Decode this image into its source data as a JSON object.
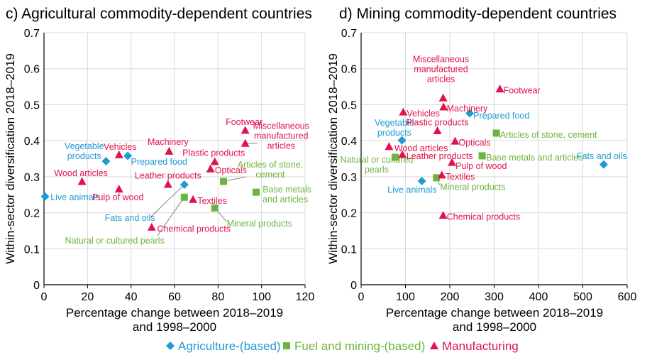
{
  "colors": {
    "agriculture": "#1f9ad6",
    "fuel": "#6db33f",
    "manufacturing": "#e0144c",
    "grid": "#d9d9d9",
    "axis": "#000000"
  },
  "legend": [
    {
      "key": "agriculture",
      "label": "Agriculture-(based)",
      "marker": "diamond"
    },
    {
      "key": "fuel",
      "label": "Fuel and mining-(based)",
      "marker": "square"
    },
    {
      "key": "manufacturing",
      "label": "Manufacturing",
      "marker": "triangle"
    }
  ],
  "chart_data": [
    {
      "type": "scatter",
      "title": "c) Agricultural commodity-dependent countries",
      "xlabel": [
        "Percentage change between 2018–2019",
        "and 1998–2000"
      ],
      "ylabel": "Within-sector diversification 2018–2019",
      "xlim": [
        0,
        120
      ],
      "ylim": [
        0,
        0.7
      ],
      "xticks": [
        "0",
        "20",
        "40",
        "60",
        "80",
        "100",
        "120"
      ],
      "yticks": [
        "0",
        "0.1",
        "0.2",
        "0.3",
        "0.4",
        "0.5",
        "0.6",
        "0.7"
      ],
      "grid": true,
      "points": [
        {
          "cat": "agriculture",
          "x": 0.5,
          "y": 0.245,
          "label": "Live animals",
          "lx": 3,
          "ly": 0.243,
          "anchor": "start",
          "leader": false
        },
        {
          "cat": "agriculture",
          "x": 28.5,
          "y": 0.343,
          "label": "Vegetable\nproducts",
          "lx": 18.5,
          "ly": 0.371,
          "anchor": "middle",
          "leader": false
        },
        {
          "cat": "agriculture",
          "x": 38.5,
          "y": 0.358,
          "label": "Prepared food",
          "lx": 40,
          "ly": 0.341,
          "anchor": "start",
          "leader": false
        },
        {
          "cat": "agriculture",
          "x": 64.5,
          "y": 0.278,
          "label": "Fats and oils",
          "lx": 39.5,
          "ly": 0.185,
          "anchor": "middle",
          "leader": true,
          "lpx": 49,
          "lpy": 0.188
        },
        {
          "cat": "fuel",
          "x": 64.5,
          "y": 0.243,
          "label": "Natural or cultured pearls",
          "lx": 32.5,
          "ly": 0.122,
          "anchor": "middle",
          "leader": true,
          "lpx": 52,
          "lpy": 0.135
        },
        {
          "cat": "fuel",
          "x": 78.5,
          "y": 0.213,
          "label": "Mineral products",
          "lx": 84,
          "ly": 0.17,
          "anchor": "start",
          "leader": true,
          "lpx": 84,
          "lpy": 0.175
        },
        {
          "cat": "fuel",
          "x": 82.5,
          "y": 0.287,
          "label": "Articles of stone,\ncement",
          "lx": 104,
          "ly": 0.319,
          "anchor": "middle",
          "leader": true,
          "lpx": 93,
          "lpy": 0.3
        },
        {
          "cat": "fuel",
          "x": 97.5,
          "y": 0.257,
          "label": "Base metals\nand articles",
          "lx": 100.5,
          "ly": 0.25,
          "anchor": "start",
          "leader": false
        },
        {
          "cat": "manufacturing",
          "x": 17.5,
          "y": 0.287,
          "label": "Wood articles",
          "lx": 17,
          "ly": 0.31,
          "anchor": "middle",
          "leader": false
        },
        {
          "cat": "manufacturing",
          "x": 34.5,
          "y": 0.361,
          "label": "Vehicles",
          "lx": 35,
          "ly": 0.383,
          "anchor": "middle",
          "leader": false
        },
        {
          "cat": "manufacturing",
          "x": 34.5,
          "y": 0.266,
          "label": "Pulp of wood",
          "lx": 34,
          "ly": 0.243,
          "anchor": "middle",
          "leader": false
        },
        {
          "cat": "manufacturing",
          "x": 49.5,
          "y": 0.16,
          "label": "Chemical products",
          "lx": 52,
          "ly": 0.155,
          "anchor": "start",
          "leader": false
        },
        {
          "cat": "manufacturing",
          "x": 57.5,
          "y": 0.371,
          "label": "Machinery",
          "lx": 57,
          "ly": 0.396,
          "anchor": "middle",
          "leader": false
        },
        {
          "cat": "manufacturing",
          "x": 57,
          "y": 0.279,
          "label": "Leather products",
          "lx": 57,
          "ly": 0.303,
          "anchor": "middle",
          "leader": false
        },
        {
          "cat": "manufacturing",
          "x": 68.5,
          "y": 0.237,
          "label": "Textiles",
          "lx": 70.5,
          "ly": 0.233,
          "anchor": "start",
          "leader": false
        },
        {
          "cat": "manufacturing",
          "x": 78.5,
          "y": 0.342,
          "label": "Plastic products",
          "lx": 78,
          "ly": 0.366,
          "anchor": "middle",
          "leader": false
        },
        {
          "cat": "manufacturing",
          "x": 76.5,
          "y": 0.322,
          "label": "Opticals",
          "lx": 78.5,
          "ly": 0.317,
          "anchor": "start",
          "leader": false
        },
        {
          "cat": "manufacturing",
          "x": 92.5,
          "y": 0.429,
          "label": "Footwear",
          "lx": 92,
          "ly": 0.452,
          "anchor": "middle",
          "leader": false
        },
        {
          "cat": "manufacturing",
          "x": 92.5,
          "y": 0.393,
          "label": "Miscellaneous\nmanufactured\narticles",
          "lx": 109,
          "ly": 0.413,
          "anchor": "middle",
          "leader": true,
          "lpx": 98,
          "lpy": 0.393
        }
      ]
    },
    {
      "type": "scatter",
      "title": "d) Mining commodity-dependent countries",
      "xlabel": [
        "Percentage change between 2018–2019",
        "and 1998–2000"
      ],
      "ylabel": "Within-sector diversification 2018–2019",
      "xlim": [
        0,
        600
      ],
      "ylim": [
        0,
        0.7
      ],
      "xticks": [
        "0",
        "100",
        "200",
        "300",
        "400",
        "500",
        "600"
      ],
      "yticks": [
        "0",
        "0.1",
        "0.2",
        "0.3",
        "0.4",
        "0.5",
        "0.6",
        "0.7"
      ],
      "grid": true,
      "points": [
        {
          "cat": "agriculture",
          "x": 92,
          "y": 0.401,
          "label": "Vegetable\nproducts",
          "lx": 75,
          "ly": 0.436,
          "anchor": "middle",
          "leader": false
        },
        {
          "cat": "agriculture",
          "x": 245,
          "y": 0.476,
          "label": "Prepared food",
          "lx": 253,
          "ly": 0.469,
          "anchor": "start",
          "leader": false
        },
        {
          "cat": "agriculture",
          "x": 137,
          "y": 0.288,
          "label": "Live animals",
          "lx": 115,
          "ly": 0.263,
          "anchor": "middle",
          "leader": false
        },
        {
          "cat": "agriculture",
          "x": 547,
          "y": 0.334,
          "label": "Fats and oils",
          "lx": 543,
          "ly": 0.357,
          "anchor": "middle",
          "leader": false
        },
        {
          "cat": "fuel",
          "x": 305,
          "y": 0.421,
          "label": "Articles of stone, cement",
          "lx": 313,
          "ly": 0.416,
          "anchor": "start",
          "leader": false
        },
        {
          "cat": "fuel",
          "x": 273,
          "y": 0.358,
          "label": "Base metals and articles",
          "lx": 282,
          "ly": 0.353,
          "anchor": "start",
          "leader": false
        },
        {
          "cat": "fuel",
          "x": 77,
          "y": 0.354,
          "label": "Natural or cultured\npearls",
          "lx": 35,
          "ly": 0.333,
          "anchor": "middle",
          "leader": false
        },
        {
          "cat": "fuel",
          "x": 170,
          "y": 0.297,
          "label": "Mineral products",
          "lx": 178,
          "ly": 0.271,
          "anchor": "start",
          "leader": true,
          "lpx": 177,
          "lpy": 0.278
        },
        {
          "cat": "manufacturing",
          "x": 95,
          "y": 0.48,
          "label": "Vehicles",
          "lx": 103,
          "ly": 0.475,
          "anchor": "start",
          "leader": false
        },
        {
          "cat": "manufacturing",
          "x": 63,
          "y": 0.384,
          "label": "Wood articles",
          "lx": 75,
          "ly": 0.379,
          "anchor": "start",
          "leader": false
        },
        {
          "cat": "manufacturing",
          "x": 93,
          "y": 0.362,
          "label": "Leather products",
          "lx": 102,
          "ly": 0.357,
          "anchor": "start",
          "leader": false
        },
        {
          "cat": "manufacturing",
          "x": 185,
          "y": 0.519,
          "label": "Miscellaneous\nmanufactured\narticles",
          "lx": 180,
          "ly": 0.598,
          "anchor": "middle",
          "leader": false
        },
        {
          "cat": "manufacturing",
          "x": 186,
          "y": 0.494,
          "label": "Machinery",
          "lx": 193,
          "ly": 0.489,
          "anchor": "start",
          "leader": false
        },
        {
          "cat": "manufacturing",
          "x": 172,
          "y": 0.428,
          "label": "Plastic products",
          "lx": 172,
          "ly": 0.451,
          "anchor": "middle",
          "leader": false
        },
        {
          "cat": "manufacturing",
          "x": 313,
          "y": 0.544,
          "label": "Footwear",
          "lx": 321,
          "ly": 0.539,
          "anchor": "start",
          "leader": false
        },
        {
          "cat": "manufacturing",
          "x": 212,
          "y": 0.399,
          "label": "Opticals",
          "lx": 220,
          "ly": 0.394,
          "anchor": "start",
          "leader": false
        },
        {
          "cat": "manufacturing",
          "x": 205,
          "y": 0.34,
          "label": "Pulp of wood",
          "lx": 213,
          "ly": 0.329,
          "anchor": "start",
          "leader": false
        },
        {
          "cat": "manufacturing",
          "x": 182,
          "y": 0.305,
          "label": "Textiles",
          "lx": 190,
          "ly": 0.3,
          "anchor": "start",
          "leader": false
        },
        {
          "cat": "manufacturing",
          "x": 185,
          "y": 0.193,
          "label": "Chemical products",
          "lx": 193,
          "ly": 0.188,
          "anchor": "start",
          "leader": false
        }
      ]
    }
  ]
}
